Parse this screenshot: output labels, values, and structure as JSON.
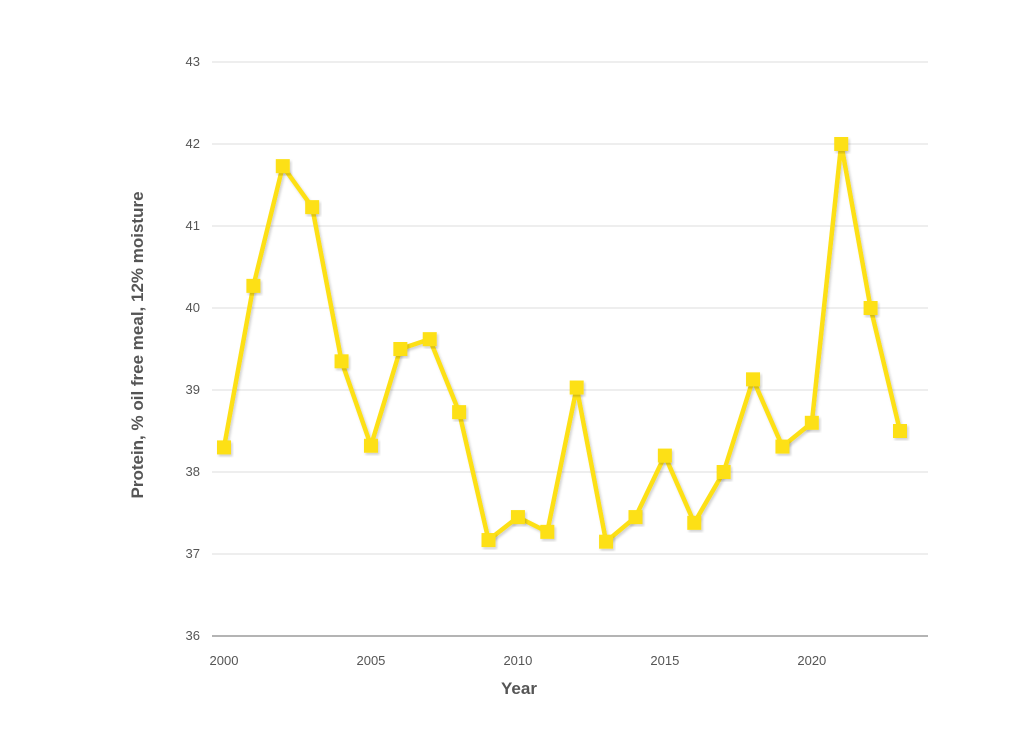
{
  "chart_data": {
    "type": "line",
    "title": "",
    "xlabel": "Year",
    "ylabel": "Protein, % oil free meal, 12% moisture",
    "xlim": [
      2000,
      2023
    ],
    "ylim": [
      36,
      43
    ],
    "x_ticks": [
      2000,
      2005,
      2010,
      2015,
      2020
    ],
    "y_ticks": [
      36,
      37,
      38,
      39,
      40,
      41,
      42,
      43
    ],
    "grid": "horizontal",
    "legend": "none",
    "x": [
      2000,
      2001,
      2002,
      2003,
      2004,
      2005,
      2006,
      2007,
      2008,
      2009,
      2010,
      2011,
      2012,
      2013,
      2014,
      2015,
      2016,
      2017,
      2018,
      2019,
      2020,
      2021,
      2022,
      2023
    ],
    "series": [
      {
        "values": [
          38.3,
          40.27,
          41.73,
          41.23,
          39.35,
          38.32,
          39.5,
          39.62,
          38.73,
          37.17,
          37.45,
          37.27,
          39.03,
          37.15,
          37.45,
          38.2,
          37.38,
          38.0,
          39.13,
          38.31,
          38.6,
          42.0,
          40.0,
          38.5
        ],
        "color": "#fde012",
        "marker": "square"
      }
    ],
    "colors": {
      "line": "#fde012",
      "grid": "#dddddd",
      "axis": "#888888",
      "text": "#555555"
    }
  }
}
